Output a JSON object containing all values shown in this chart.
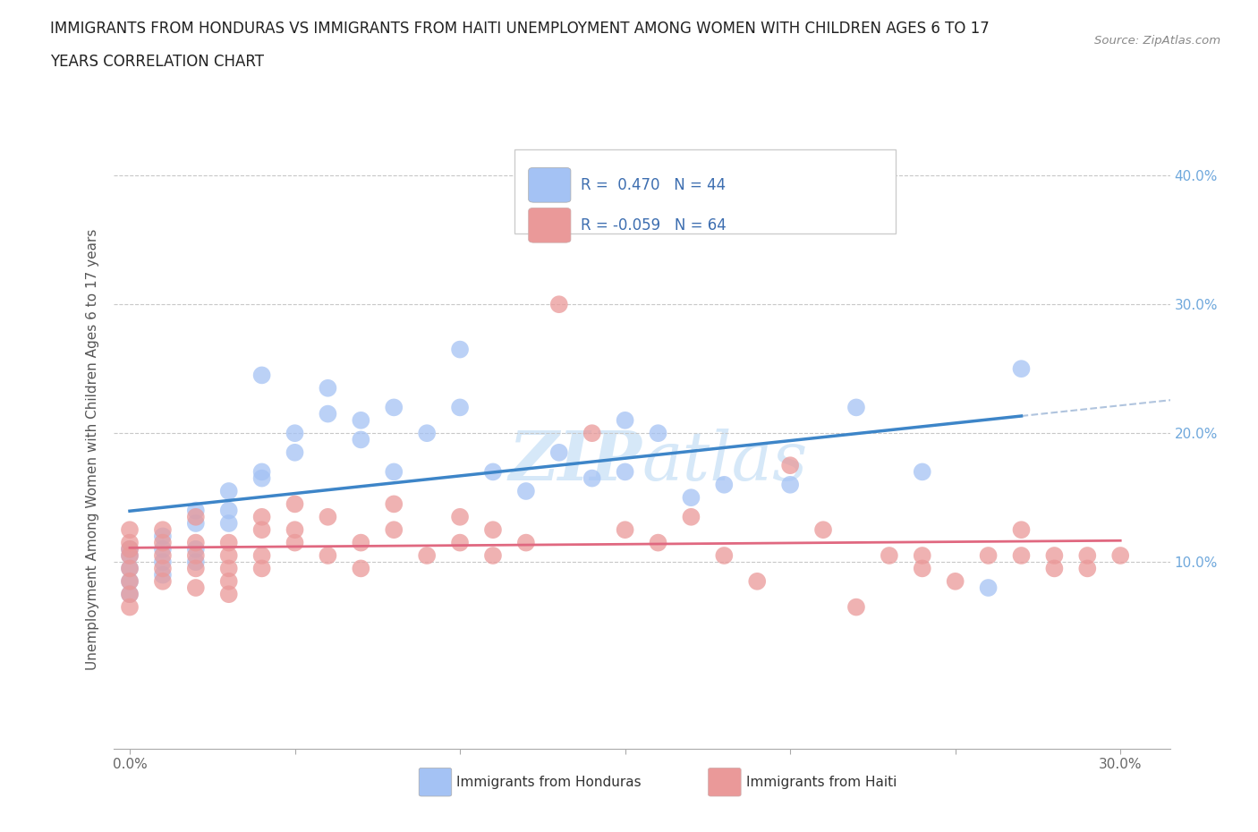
{
  "title_line1": "IMMIGRANTS FROM HONDURAS VS IMMIGRANTS FROM HAITI UNEMPLOYMENT AMONG WOMEN WITH CHILDREN AGES 6 TO 17",
  "title_line2": "YEARS CORRELATION CHART",
  "source": "Source: ZipAtlas.com",
  "ylabel": "Unemployment Among Women with Children Ages 6 to 17 years",
  "xlim": [
    -0.005,
    0.315
  ],
  "ylim": [
    -0.045,
    0.42
  ],
  "y_ticks": [
    0.0,
    0.1,
    0.2,
    0.3,
    0.4
  ],
  "x_ticks": [
    0.0,
    0.05,
    0.1,
    0.15,
    0.2,
    0.25,
    0.3
  ],
  "R_honduras": 0.47,
  "N_honduras": 44,
  "R_haiti": -0.059,
  "N_haiti": 64,
  "color_honduras": "#a4c2f4",
  "color_haiti": "#ea9999",
  "color_trend_honduras": "#3d85c8",
  "color_trend_haiti": "#e06880",
  "color_dashed": "#b0c4de",
  "color_grid": "#c8c8c8",
  "color_right_axis": "#6fa8dc",
  "watermark_color": "#d6e8f8",
  "legend_label_honduras": "Immigrants from Honduras",
  "legend_label_haiti": "Immigrants from Haiti",
  "honduras_x": [
    0.0,
    0.0,
    0.0,
    0.0,
    0.0,
    0.01,
    0.01,
    0.01,
    0.01,
    0.02,
    0.02,
    0.02,
    0.02,
    0.03,
    0.03,
    0.03,
    0.04,
    0.04,
    0.04,
    0.05,
    0.05,
    0.06,
    0.06,
    0.07,
    0.07,
    0.08,
    0.08,
    0.09,
    0.1,
    0.1,
    0.11,
    0.12,
    0.13,
    0.14,
    0.15,
    0.15,
    0.16,
    0.17,
    0.18,
    0.2,
    0.22,
    0.24,
    0.26,
    0.27
  ],
  "honduras_y": [
    0.105,
    0.11,
    0.095,
    0.085,
    0.075,
    0.1,
    0.09,
    0.11,
    0.12,
    0.11,
    0.13,
    0.1,
    0.14,
    0.14,
    0.155,
    0.13,
    0.165,
    0.17,
    0.245,
    0.2,
    0.185,
    0.215,
    0.235,
    0.21,
    0.195,
    0.22,
    0.17,
    0.2,
    0.22,
    0.265,
    0.17,
    0.155,
    0.185,
    0.165,
    0.21,
    0.17,
    0.2,
    0.15,
    0.16,
    0.16,
    0.22,
    0.17,
    0.08,
    0.25
  ],
  "haiti_x": [
    0.0,
    0.0,
    0.0,
    0.0,
    0.0,
    0.0,
    0.0,
    0.0,
    0.01,
    0.01,
    0.01,
    0.01,
    0.01,
    0.02,
    0.02,
    0.02,
    0.02,
    0.02,
    0.03,
    0.03,
    0.03,
    0.03,
    0.03,
    0.04,
    0.04,
    0.04,
    0.04,
    0.05,
    0.05,
    0.05,
    0.06,
    0.06,
    0.07,
    0.07,
    0.08,
    0.08,
    0.09,
    0.1,
    0.1,
    0.11,
    0.11,
    0.12,
    0.13,
    0.14,
    0.15,
    0.16,
    0.17,
    0.18,
    0.19,
    0.2,
    0.21,
    0.22,
    0.23,
    0.24,
    0.24,
    0.25,
    0.26,
    0.27,
    0.27,
    0.28,
    0.28,
    0.29,
    0.29,
    0.3
  ],
  "haiti_y": [
    0.115,
    0.105,
    0.095,
    0.125,
    0.085,
    0.075,
    0.065,
    0.11,
    0.115,
    0.105,
    0.095,
    0.085,
    0.125,
    0.105,
    0.095,
    0.115,
    0.135,
    0.08,
    0.105,
    0.095,
    0.085,
    0.115,
    0.075,
    0.135,
    0.125,
    0.105,
    0.095,
    0.115,
    0.125,
    0.145,
    0.105,
    0.135,
    0.095,
    0.115,
    0.125,
    0.145,
    0.105,
    0.135,
    0.115,
    0.105,
    0.125,
    0.115,
    0.3,
    0.2,
    0.125,
    0.115,
    0.135,
    0.105,
    0.085,
    0.175,
    0.125,
    0.065,
    0.105,
    0.095,
    0.105,
    0.085,
    0.105,
    0.105,
    0.125,
    0.105,
    0.095,
    0.105,
    0.095,
    0.105
  ]
}
